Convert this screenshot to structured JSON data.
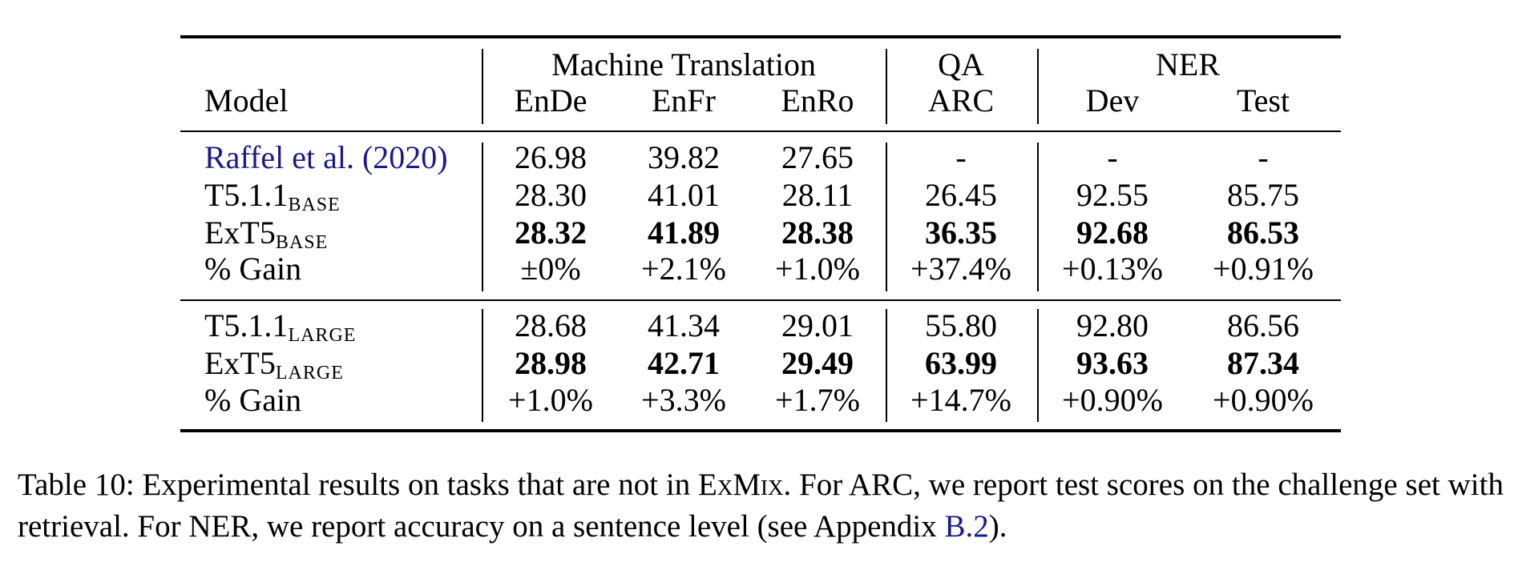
{
  "table": {
    "header": {
      "model": "Model",
      "groups": [
        "Machine Translation",
        "QA",
        "NER"
      ],
      "columns": [
        "EnDe",
        "EnFr",
        "EnRo",
        "ARC",
        "Dev",
        "Test"
      ]
    },
    "sections": [
      [
        {
          "model": {
            "name": "Raffel et al. (2020)",
            "color": "#1a1a8c"
          },
          "values": [
            "26.98",
            "39.82",
            "27.65",
            "-",
            "-",
            "-"
          ]
        },
        {
          "model": {
            "name": "T5.1.1",
            "sub": "BASE"
          },
          "values": [
            "28.30",
            "41.01",
            "28.11",
            "26.45",
            "92.55",
            "85.75"
          ]
        },
        {
          "model": {
            "name": "ExT5",
            "sub": "BASE"
          },
          "bold": true,
          "values": [
            "28.32",
            "41.89",
            "28.38",
            "36.35",
            "92.68",
            "86.53"
          ]
        },
        {
          "model": {
            "name": "% Gain"
          },
          "values": [
            "±0%",
            "+2.1%",
            "+1.0%",
            "+37.4%",
            "+0.13%",
            "+0.91%"
          ]
        }
      ],
      [
        {
          "model": {
            "name": "T5.1.1",
            "sub": "LARGE"
          },
          "values": [
            "28.68",
            "41.34",
            "29.01",
            "55.80",
            "92.80",
            "86.56"
          ]
        },
        {
          "model": {
            "name": "ExT5",
            "sub": "LARGE"
          },
          "bold": true,
          "values": [
            "28.98",
            "42.71",
            "29.49",
            "63.99",
            "93.63",
            "87.34"
          ]
        },
        {
          "model": {
            "name": "% Gain"
          },
          "values": [
            "+1.0%",
            "+3.3%",
            "+1.7%",
            "+14.7%",
            "+0.90%",
            "+0.90%"
          ]
        }
      ]
    ]
  },
  "caption": {
    "text1": "Table 10: Experimental results on tasks that are not in ",
    "smallcaps": "ExMix",
    "text2": ". For ARC, we report test scores on the challenge set with retrieval. For NER, we report accuracy on a sentence level (see Appendix ",
    "link": "B.2",
    "link_color": "#1a1a8c",
    "text3": ")."
  }
}
